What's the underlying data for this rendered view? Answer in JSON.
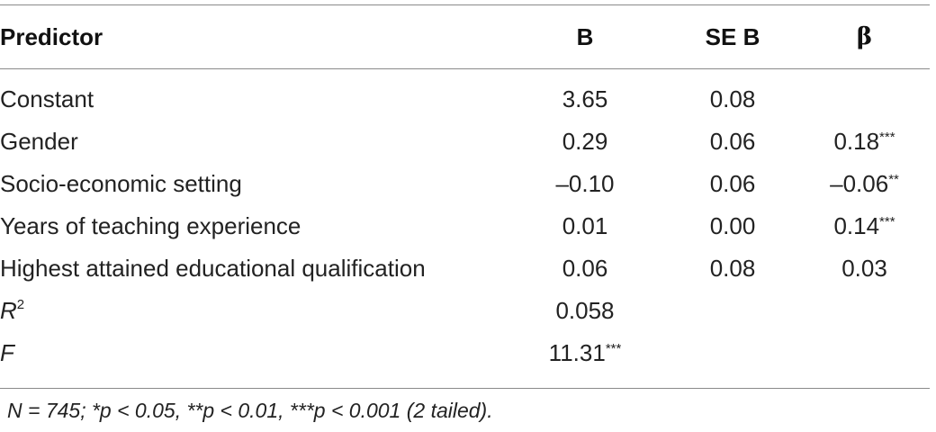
{
  "table": {
    "headers": {
      "predictor": "Predictor",
      "b": "B",
      "se_b": "SE B",
      "beta": "β"
    },
    "rows": [
      {
        "predictor": "Constant",
        "b": "3.65",
        "se_b": "0.08",
        "beta": "",
        "beta_stars": ""
      },
      {
        "predictor": "Gender",
        "b": "0.29",
        "se_b": "0.06",
        "beta": "0.18",
        "beta_stars": "***"
      },
      {
        "predictor": "Socio-economic setting",
        "b": "–0.10",
        "se_b": "0.06",
        "beta": "–0.06",
        "beta_stars": "**"
      },
      {
        "predictor": "Years of teaching experience",
        "b": "0.01",
        "se_b": "0.00",
        "beta": "0.14",
        "beta_stars": "***"
      },
      {
        "predictor": "Highest attained educational qualification",
        "b": "0.06",
        "se_b": "0.08",
        "beta": "0.03",
        "beta_stars": ""
      }
    ],
    "r_squared": {
      "label": "R",
      "label_sup": "2",
      "b": "0.058"
    },
    "f_stat": {
      "label": "F",
      "b": "11.31",
      "b_stars": "***"
    }
  },
  "note": "N = 745; *p < 0.05, **p < 0.01, ***p < 0.001 (2 tailed)."
}
